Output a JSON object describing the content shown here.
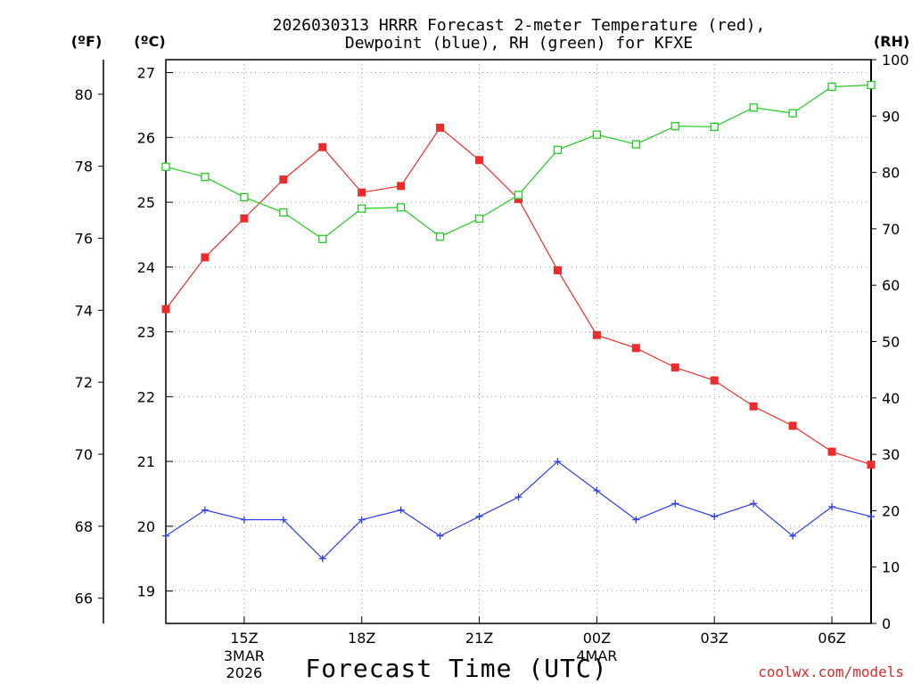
{
  "title_line1": "2026030313 HRRR Forecast 2-meter Temperature (red),",
  "title_line2": "Dewpoint (blue), RH (green) for KFXE",
  "x_axis_title": "Forecast Time (UTC)",
  "credit": "coolwx.com/models",
  "units": {
    "fahrenheit": "(ºF)",
    "celsius": "(ºC)",
    "rh": "(RH)"
  },
  "colors": {
    "temperature": "#ee2b2b",
    "dewpoint": "#2b3cf0",
    "rh": "#22cc22",
    "grid": "#9a9a9a"
  },
  "chart_data": {
    "type": "line",
    "title": "2026030313 HRRR Forecast 2-meter Temperature (red), Dewpoint (blue), RH (green) for KFXE",
    "xlabel": "Forecast Time (UTC)",
    "x_hours_utc": [
      13,
      14,
      15,
      16,
      17,
      18,
      19,
      20,
      21,
      22,
      23,
      24,
      25,
      26,
      27,
      28,
      29,
      30,
      31
    ],
    "x_range_hours": [
      13,
      31
    ],
    "x_ticks": [
      {
        "hour": 15,
        "label": "15Z",
        "date1": "3MAR",
        "date2": "2026"
      },
      {
        "hour": 18,
        "label": "18Z"
      },
      {
        "hour": 21,
        "label": "21Z"
      },
      {
        "hour": 24,
        "label": "00Z",
        "date1": "4MAR"
      },
      {
        "hour": 27,
        "label": "03Z"
      },
      {
        "hour": 30,
        "label": "06Z"
      }
    ],
    "celsius_axis": {
      "range": [
        18.5,
        27.2
      ],
      "ticks": [
        "19",
        "20",
        "21",
        "22",
        "23",
        "24",
        "25",
        "26",
        "27"
      ]
    },
    "fahrenheit_axis": {
      "range": [
        65.3,
        80.96
      ],
      "ticks": [
        "66",
        "68",
        "70",
        "72",
        "74",
        "76",
        "78",
        "80"
      ]
    },
    "rh_axis": {
      "range": [
        0,
        100
      ],
      "ticks": [
        "0",
        "10",
        "20",
        "30",
        "40",
        "50",
        "60",
        "70",
        "80",
        "90",
        "100"
      ]
    },
    "series": [
      {
        "name": "Temperature",
        "unit": "C",
        "axis": "celsius",
        "marker": "filled-square",
        "values": [
          23.35,
          24.15,
          24.75,
          25.35,
          25.85,
          25.15,
          25.25,
          26.15,
          25.65,
          25.05,
          23.95,
          22.95,
          22.75,
          22.45,
          22.25,
          21.85,
          21.55,
          21.15,
          20.95
        ]
      },
      {
        "name": "Dewpoint",
        "unit": "C",
        "axis": "celsius",
        "marker": "plus",
        "values": [
          19.85,
          20.25,
          20.1,
          20.1,
          19.5,
          20.1,
          20.25,
          19.85,
          20.15,
          20.45,
          21.0,
          20.55,
          20.1,
          20.35,
          20.15,
          20.35,
          19.85,
          20.3,
          20.15
        ]
      },
      {
        "name": "RH",
        "unit": "%",
        "axis": "rh",
        "marker": "open-square",
        "values": [
          81.0,
          79.2,
          75.6,
          72.9,
          68.2,
          73.6,
          73.8,
          68.6,
          71.8,
          76.0,
          84.0,
          86.7,
          85.0,
          88.2,
          88.1,
          91.5,
          90.5,
          95.2,
          95.5
        ]
      }
    ]
  }
}
